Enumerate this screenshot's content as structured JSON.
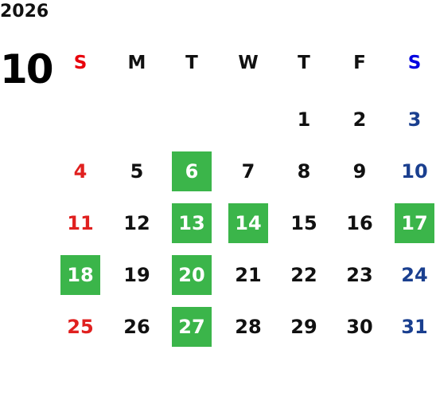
{
  "year": "2026",
  "month": "10",
  "weekdays": [
    "S",
    "M",
    "T",
    "W",
    "T",
    "F",
    "S"
  ],
  "weeks": [
    [
      null,
      null,
      null,
      null,
      {
        "day": "1",
        "highlight": false
      },
      {
        "day": "2",
        "highlight": false
      },
      {
        "day": "3",
        "highlight": false
      }
    ],
    [
      {
        "day": "4",
        "highlight": false
      },
      {
        "day": "5",
        "highlight": false
      },
      {
        "day": "6",
        "highlight": true
      },
      {
        "day": "7",
        "highlight": false
      },
      {
        "day": "8",
        "highlight": false
      },
      {
        "day": "9",
        "highlight": false
      },
      {
        "day": "10",
        "highlight": false
      }
    ],
    [
      {
        "day": "11",
        "highlight": false
      },
      {
        "day": "12",
        "highlight": false
      },
      {
        "day": "13",
        "highlight": true
      },
      {
        "day": "14",
        "highlight": true
      },
      {
        "day": "15",
        "highlight": false
      },
      {
        "day": "16",
        "highlight": false
      },
      {
        "day": "17",
        "highlight": true
      }
    ],
    [
      {
        "day": "18",
        "highlight": true
      },
      {
        "day": "19",
        "highlight": false
      },
      {
        "day": "20",
        "highlight": true
      },
      {
        "day": "21",
        "highlight": false
      },
      {
        "day": "22",
        "highlight": false
      },
      {
        "day": "23",
        "highlight": false
      },
      {
        "day": "24",
        "highlight": false
      }
    ],
    [
      {
        "day": "25",
        "highlight": false
      },
      {
        "day": "26",
        "highlight": false
      },
      {
        "day": "27",
        "highlight": true
      },
      {
        "day": "28",
        "highlight": false
      },
      {
        "day": "29",
        "highlight": false
      },
      {
        "day": "30",
        "highlight": false
      },
      {
        "day": "31",
        "highlight": false
      }
    ]
  ]
}
